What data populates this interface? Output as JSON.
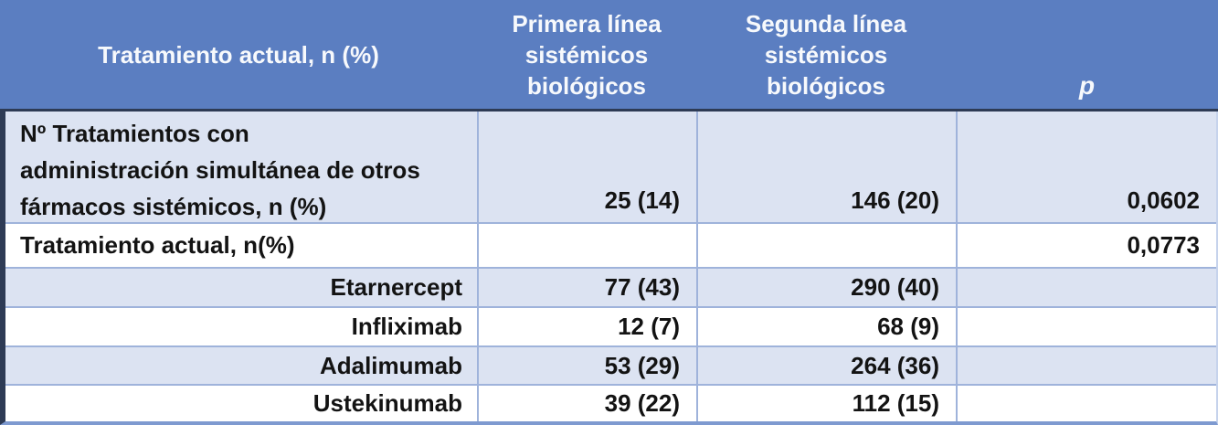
{
  "table": {
    "header": {
      "col1": "Tratamiento actual, n (%)",
      "col2_lines": [
        "Primera línea",
        "sistémicos",
        "biológicos"
      ],
      "col3_lines": [
        "Segunda línea",
        "sistémicos",
        "biológicos"
      ],
      "col4": "p"
    },
    "rows": [
      {
        "label_lines": [
          "Nº Tratamientos con",
          "administración simultánea de otros",
          "fármacos sistémicos, n (%)"
        ],
        "first": "25 (14)",
        "second": "146 (20)",
        "p": "0,0602"
      },
      {
        "label": "Tratamiento actual, n(%)",
        "first": "",
        "second": "",
        "p": "0,0773"
      },
      {
        "label": "Etarnercept",
        "first": "77 (43)",
        "second": "290 (40)",
        "p": ""
      },
      {
        "label": "Infliximab",
        "first": "12 (7)",
        "second": "68 (9)",
        "p": ""
      },
      {
        "label": "Adalimumab",
        "first": "53 (29)",
        "second": "264 (36)",
        "p": ""
      },
      {
        "label": "Ustekinumab",
        "first": "39 (22)",
        "second": "112 (15)",
        "p": ""
      }
    ],
    "colors": {
      "header_bg": "#5B7EC1",
      "header_text": "#F7F9FC",
      "row_alt_bg": "#DCE3F2",
      "row_bg": "#FFFFFF",
      "body_text": "#131313",
      "grid_border": "#9FB3DB",
      "header_divider": "#2E3B55",
      "left_border": "#2E3B55",
      "bottom_border": "#7E9AD0"
    }
  }
}
